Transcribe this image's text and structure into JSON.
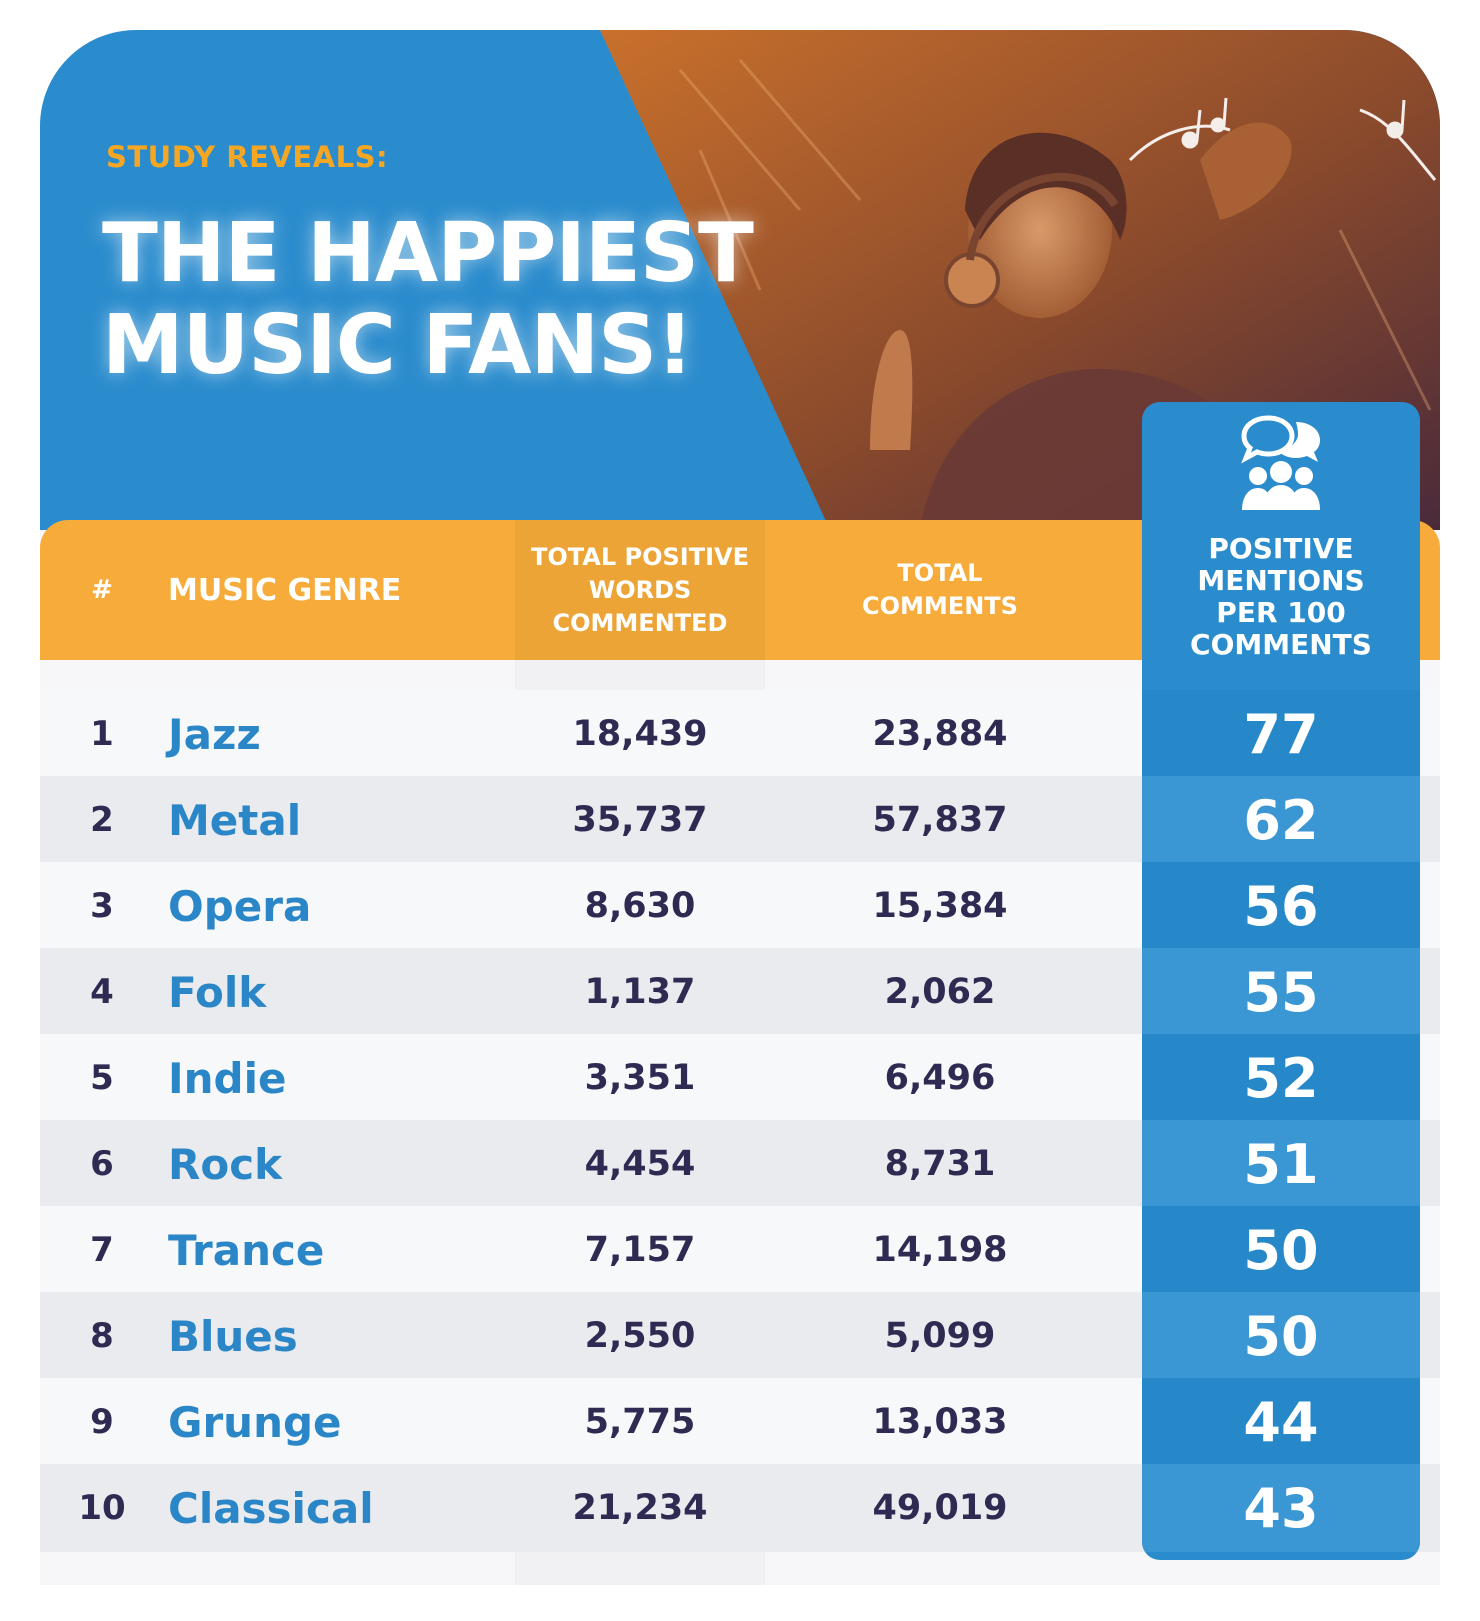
{
  "header": {
    "kicker": "STUDY REVEALS:",
    "title_line1": "THE HAPPIEST",
    "title_line2": "MUSIC FANS!"
  },
  "colors": {
    "blue": "#2b8ccd",
    "orange": "#f7ab3a",
    "genre_text": "#2a86c7",
    "number_text": "#2e2a52"
  },
  "icons": {
    "score_header": "people-chat-icon"
  },
  "chart_data": {
    "type": "table",
    "columns": [
      "#",
      "MUSIC GENRE",
      "TOTAL POSITIVE WORDS COMMENTED",
      "TOTAL COMMENTS",
      "POSITIVE MENTIONS PER 100 COMMENTS"
    ],
    "column_lines": {
      "rank": [
        "#"
      ],
      "genre": [
        "MUSIC GENRE"
      ],
      "words": [
        "TOTAL POSITIVE",
        "WORDS",
        "COMMENTED"
      ],
      "comments": [
        "TOTAL",
        "COMMENTS"
      ],
      "score": [
        "POSITIVE",
        "MENTIONS",
        "PER 100",
        "COMMENTS"
      ]
    },
    "rows": [
      {
        "rank": "1",
        "genre": "Jazz",
        "words": "18,439",
        "comments": "23,884",
        "score": "77"
      },
      {
        "rank": "2",
        "genre": "Metal",
        "words": "35,737",
        "comments": "57,837",
        "score": "62"
      },
      {
        "rank": "3",
        "genre": "Opera",
        "words": "8,630",
        "comments": "15,384",
        "score": "56"
      },
      {
        "rank": "4",
        "genre": "Folk",
        "words": "1,137",
        "comments": "2,062",
        "score": "55"
      },
      {
        "rank": "5",
        "genre": "Indie",
        "words": "3,351",
        "comments": "6,496",
        "score": "52"
      },
      {
        "rank": "6",
        "genre": "Rock",
        "words": "4,454",
        "comments": "8,731",
        "score": "51"
      },
      {
        "rank": "7",
        "genre": "Trance",
        "words": "7,157",
        "comments": "14,198",
        "score": "50"
      },
      {
        "rank": "8",
        "genre": "Blues",
        "words": "2,550",
        "comments": "5,099",
        "score": "50"
      },
      {
        "rank": "9",
        "genre": "Grunge",
        "words": "5,775",
        "comments": "13,033",
        "score": "44"
      },
      {
        "rank": "10",
        "genre": "Classical",
        "words": "21,234",
        "comments": "49,019",
        "score": "43"
      }
    ]
  }
}
